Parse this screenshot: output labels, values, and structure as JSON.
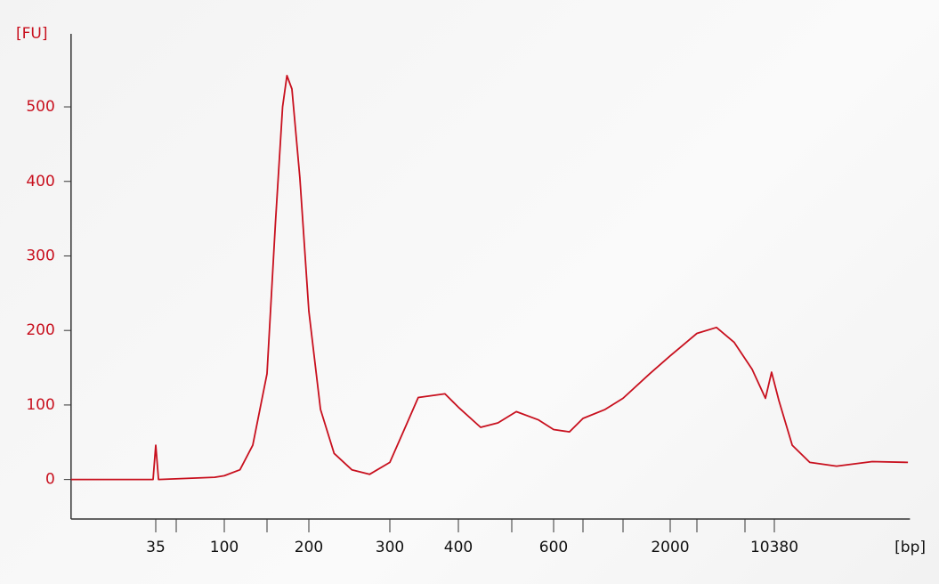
{
  "chart_data": {
    "type": "line",
    "ylabel": "[FU]",
    "xlabel": "[bp]",
    "x": [
      8,
      33.4,
      35,
      36.7,
      87,
      100,
      116,
      131,
      150,
      159,
      167,
      172,
      178,
      188,
      200,
      212,
      227,
      248,
      271,
      300,
      320,
      338,
      378,
      400,
      439,
      472,
      510,
      562,
      600,
      652,
      700,
      853,
      1000,
      1480,
      2000,
      3000,
      4240,
      5790,
      7700,
      9210,
      10000,
      11030,
      13200,
      16700,
      23900,
      38600,
      62300
    ],
    "values": [
      0,
      0,
      46,
      0,
      3,
      5,
      13,
      46,
      142,
      345,
      500,
      542,
      524,
      405,
      226,
      94,
      35,
      13,
      7,
      23,
      70,
      110,
      115,
      97,
      70,
      76,
      91,
      80,
      67,
      64,
      82,
      94,
      109,
      142,
      166,
      196,
      204,
      184,
      148,
      109,
      144,
      106,
      46,
      23,
      18,
      24,
      23
    ],
    "color": "#c8101e",
    "xlim": [
      8,
      64000
    ],
    "xticks": [
      35,
      100,
      200,
      300,
      400,
      600,
      2000,
      10380
    ],
    "xminor_ticks": [
      50,
      150,
      500,
      700,
      1000,
      3000,
      7000
    ],
    "ylim": [
      -53,
      598
    ],
    "yticks": [
      0,
      100,
      200,
      300,
      400,
      500
    ]
  }
}
